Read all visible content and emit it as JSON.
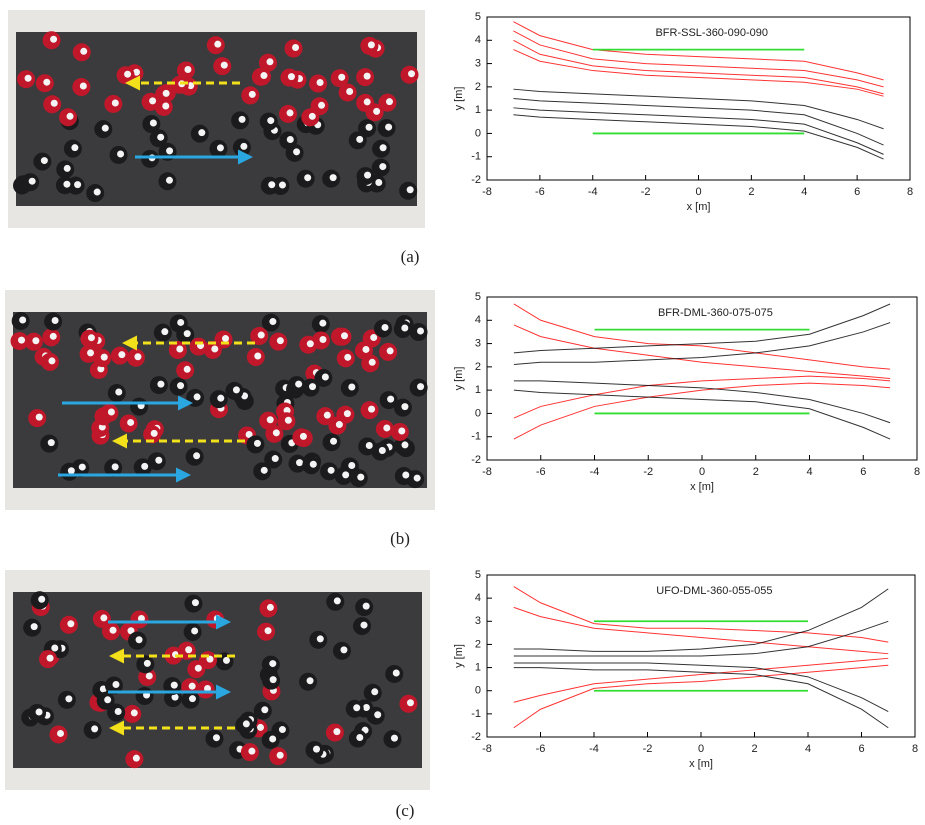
{
  "captions": [
    "(a)",
    "(b)",
    "(c)"
  ],
  "chart_data": [
    {
      "type": "line",
      "title": "BFR-SSL-360-090-090",
      "xlabel": "x [m]",
      "ylabel": "y [m]",
      "xlim": [
        -8,
        8
      ],
      "ylim": [
        -2,
        5
      ],
      "xticks": [
        -8,
        -6,
        -4,
        -2,
        0,
        2,
        4,
        6,
        8
      ],
      "yticks": [
        -2,
        -1,
        0,
        1,
        2,
        3,
        4,
        5
      ],
      "x": [
        -7,
        -6,
        -4,
        -2,
        0,
        2,
        4,
        6,
        7
      ],
      "series": [
        {
          "color": "#ff0000",
          "values": [
            4.8,
            4.2,
            3.6,
            3.4,
            3.3,
            3.2,
            3.1,
            2.6,
            2.3
          ]
        },
        {
          "color": "#ff0000",
          "values": [
            4.4,
            3.8,
            3.2,
            3.0,
            2.9,
            2.8,
            2.7,
            2.3,
            2.0
          ]
        },
        {
          "color": "#ff0000",
          "values": [
            4.0,
            3.4,
            2.9,
            2.7,
            2.6,
            2.5,
            2.4,
            2.0,
            1.7
          ]
        },
        {
          "color": "#ff0000",
          "values": [
            3.6,
            3.1,
            2.7,
            2.5,
            2.4,
            2.3,
            2.2,
            1.9,
            1.6
          ]
        },
        {
          "color": "#000000",
          "values": [
            1.9,
            1.8,
            1.7,
            1.6,
            1.5,
            1.4,
            1.2,
            0.6,
            0.2
          ]
        },
        {
          "color": "#000000",
          "values": [
            1.5,
            1.4,
            1.3,
            1.2,
            1.1,
            1.0,
            0.8,
            0.0,
            -0.5
          ]
        },
        {
          "color": "#000000",
          "values": [
            1.1,
            1.0,
            0.9,
            0.8,
            0.7,
            0.6,
            0.4,
            -0.4,
            -0.9
          ]
        },
        {
          "color": "#000000",
          "values": [
            0.8,
            0.7,
            0.6,
            0.5,
            0.4,
            0.3,
            0.1,
            -0.6,
            -1.1
          ]
        },
        {
          "color": "#33dd33",
          "x": [
            -4,
            4
          ],
          "values": [
            3.6,
            3.6
          ]
        },
        {
          "color": "#33dd33",
          "x": [
            -4,
            4
          ],
          "values": [
            0,
            0
          ]
        }
      ]
    },
    {
      "type": "line",
      "title": "BFR-DML-360-075-075",
      "xlabel": "x [m]",
      "ylabel": "y [m]",
      "xlim": [
        -8,
        8
      ],
      "ylim": [
        -2,
        5
      ],
      "xticks": [
        -8,
        -6,
        -4,
        -2,
        0,
        2,
        4,
        6,
        8
      ],
      "yticks": [
        -2,
        -1,
        0,
        1,
        2,
        3,
        4,
        5
      ],
      "x": [
        -7,
        -6,
        -4,
        -2,
        0,
        2,
        4,
        6,
        7
      ],
      "series": [
        {
          "color": "#ff0000",
          "values": [
            4.7,
            4.0,
            3.3,
            3.0,
            2.9,
            2.6,
            2.3,
            2.0,
            1.9
          ]
        },
        {
          "color": "#ff0000",
          "values": [
            3.8,
            3.3,
            2.8,
            2.5,
            2.2,
            2.0,
            1.8,
            1.6,
            1.5
          ]
        },
        {
          "color": "#ff0000",
          "values": [
            -0.2,
            0.3,
            0.8,
            1.2,
            1.4,
            1.5,
            1.6,
            1.5,
            1.4
          ]
        },
        {
          "color": "#ff0000",
          "values": [
            -1.1,
            -0.5,
            0.3,
            0.7,
            1.0,
            1.2,
            1.3,
            1.2,
            1.1
          ]
        },
        {
          "color": "#000000",
          "values": [
            2.6,
            2.7,
            2.8,
            2.9,
            3.0,
            3.1,
            3.4,
            4.2,
            4.7
          ]
        },
        {
          "color": "#000000",
          "values": [
            2.1,
            2.2,
            2.2,
            2.3,
            2.4,
            2.6,
            2.9,
            3.5,
            3.9
          ]
        },
        {
          "color": "#000000",
          "values": [
            1.4,
            1.4,
            1.3,
            1.2,
            1.1,
            0.9,
            0.6,
            0.0,
            -0.4
          ]
        },
        {
          "color": "#000000",
          "values": [
            1.0,
            0.9,
            0.8,
            0.7,
            0.6,
            0.5,
            0.2,
            -0.6,
            -1.1
          ]
        },
        {
          "color": "#33dd33",
          "x": [
            -4,
            4
          ],
          "values": [
            3.6,
            3.6
          ]
        },
        {
          "color": "#33dd33",
          "x": [
            -4,
            4
          ],
          "values": [
            0,
            0
          ]
        }
      ]
    },
    {
      "type": "line",
      "title": "UFO-DML-360-055-055",
      "xlabel": "x [m]",
      "ylabel": "y [m]",
      "xlim": [
        -8,
        8
      ],
      "ylim": [
        -2,
        5
      ],
      "xticks": [
        -8,
        -6,
        -4,
        -2,
        0,
        2,
        4,
        6,
        8
      ],
      "yticks": [
        -2,
        -1,
        0,
        1,
        2,
        3,
        4,
        5
      ],
      "x": [
        -7,
        -6,
        -4,
        -2,
        0,
        2,
        4,
        6,
        7
      ],
      "series": [
        {
          "color": "#ff0000",
          "values": [
            4.5,
            3.8,
            2.9,
            2.7,
            2.7,
            2.6,
            2.5,
            2.3,
            2.1
          ]
        },
        {
          "color": "#ff0000",
          "values": [
            3.6,
            3.2,
            2.7,
            2.5,
            2.3,
            2.1,
            1.9,
            1.7,
            1.6
          ]
        },
        {
          "color": "#ff0000",
          "values": [
            -0.5,
            -0.2,
            0.3,
            0.5,
            0.7,
            0.9,
            1.1,
            1.3,
            1.4
          ]
        },
        {
          "color": "#ff0000",
          "values": [
            -1.6,
            -0.8,
            0.1,
            0.3,
            0.4,
            0.6,
            0.8,
            1.0,
            1.1
          ]
        },
        {
          "color": "#000000",
          "values": [
            1.8,
            1.8,
            1.7,
            1.7,
            1.8,
            2.0,
            2.6,
            3.6,
            4.4
          ]
        },
        {
          "color": "#000000",
          "values": [
            1.5,
            1.5,
            1.5,
            1.5,
            1.5,
            1.6,
            1.9,
            2.6,
            3.0
          ]
        },
        {
          "color": "#000000",
          "values": [
            1.2,
            1.2,
            1.2,
            1.2,
            1.1,
            1.0,
            0.6,
            -0.3,
            -0.9
          ]
        },
        {
          "color": "#000000",
          "values": [
            1.0,
            1.0,
            0.9,
            0.9,
            0.8,
            0.7,
            0.3,
            -0.8,
            -1.6
          ]
        },
        {
          "color": "#33dd33",
          "x": [
            -4,
            4
          ],
          "values": [
            3.0,
            3.0
          ]
        },
        {
          "color": "#33dd33",
          "x": [
            -4,
            4
          ],
          "values": [
            0,
            0
          ]
        }
      ]
    }
  ]
}
